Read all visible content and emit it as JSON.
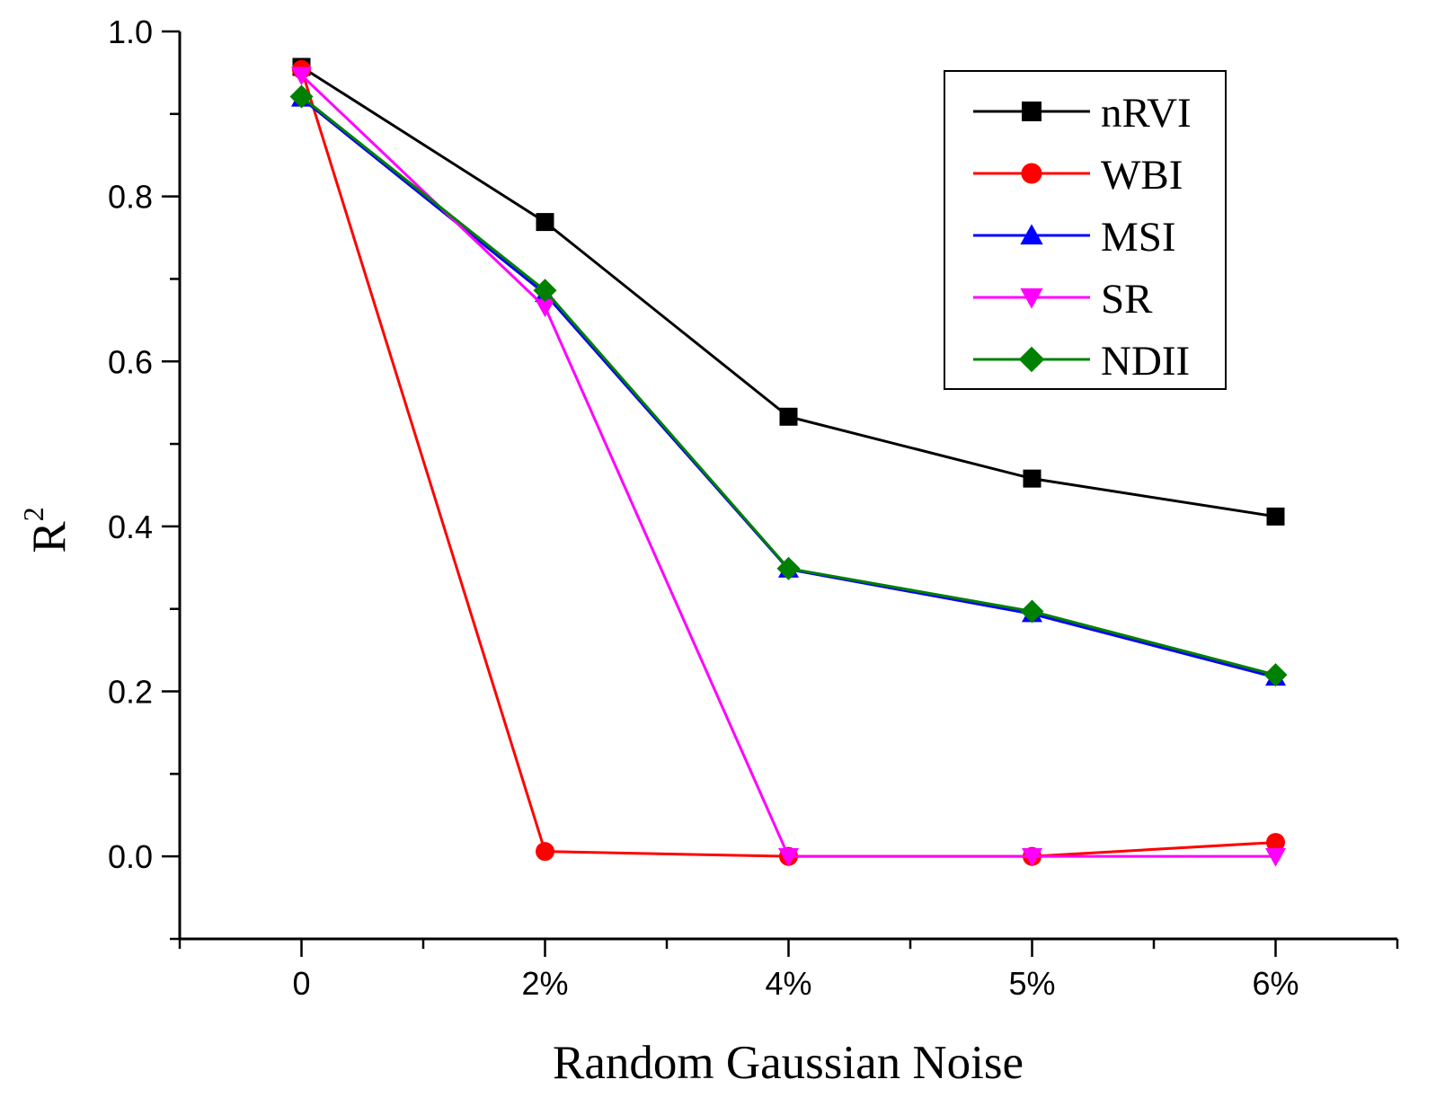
{
  "chart_data": {
    "type": "line",
    "title": "",
    "xlabel": "Random Gaussian Noise",
    "ylabel": "R",
    "ylabel_superscript": "2",
    "categories": [
      "0",
      "2%",
      "4%",
      "5%",
      "6%"
    ],
    "ylim": [
      -0.1,
      1.0
    ],
    "y_ticks": [
      "0.0",
      "0.2",
      "0.4",
      "0.6",
      "0.8",
      "1.0"
    ],
    "grid": false,
    "legend_position": "top-right",
    "series": [
      {
        "name": "nRVI",
        "color": "#000000",
        "marker": "square",
        "values": [
          0.957,
          0.769,
          0.533,
          0.458,
          0.412
        ]
      },
      {
        "name": "WBI",
        "color": "#ff0000",
        "marker": "circle",
        "values": [
          0.954,
          0.006,
          0.0,
          0.0,
          0.017
        ]
      },
      {
        "name": "MSI",
        "color": "#0000ff",
        "marker": "triangle-up",
        "values": [
          0.919,
          0.682,
          0.348,
          0.294,
          0.217
        ]
      },
      {
        "name": "SR",
        "color": "#ff00ff",
        "marker": "triangle-down",
        "values": [
          0.947,
          0.666,
          0.0,
          0.0,
          0.0
        ]
      },
      {
        "name": "NDII",
        "color": "#008000",
        "marker": "diamond",
        "values": [
          0.921,
          0.686,
          0.349,
          0.297,
          0.22
        ]
      }
    ]
  }
}
